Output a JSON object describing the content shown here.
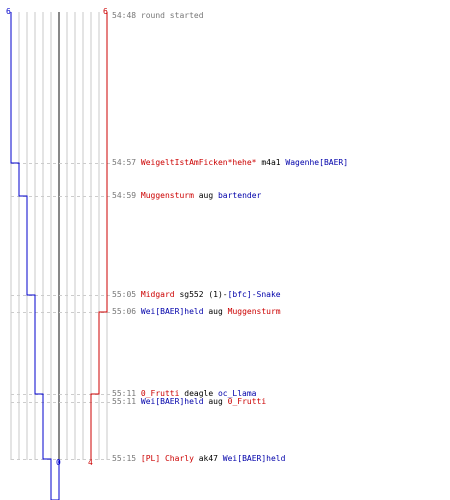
{
  "colors": {
    "red": "#cc0000",
    "blue": "#0000cc",
    "grid": "#c8c8c8",
    "center": "#888888",
    "time": "#777777",
    "dash": "#cccccc"
  },
  "counts": {
    "blue_start": "6",
    "red_start": "6",
    "blue_end": "0",
    "red_end": "4"
  },
  "events": [
    {
      "time": "54:48",
      "parts": [
        {
          "text": "round started",
          "color": "text"
        }
      ]
    },
    {
      "time": "54:57",
      "parts": [
        {
          "text": "WeigeltIstAmFicken*hehe*",
          "color": "red"
        },
        {
          "text": " m4a1 ",
          "color": "plain"
        },
        {
          "text": "Wagenhe[BAER]",
          "color": "blue"
        }
      ]
    },
    {
      "time": "54:59",
      "parts": [
        {
          "text": "Muggensturm",
          "color": "red"
        },
        {
          "text": " aug ",
          "color": "plain"
        },
        {
          "text": "bartender",
          "color": "blue"
        }
      ]
    },
    {
      "time": "55:05",
      "parts": [
        {
          "text": "Midgard",
          "color": "red"
        },
        {
          "text": " sg552 (1)-",
          "color": "plain"
        },
        {
          "text": "[bfc]-Snake",
          "color": "blue"
        }
      ]
    },
    {
      "time": "55:06",
      "parts": [
        {
          "text": "Wei[BAER]held",
          "color": "blue"
        },
        {
          "text": " aug ",
          "color": "plain"
        },
        {
          "text": "Muggensturm",
          "color": "red"
        }
      ]
    },
    {
      "time": "55:11",
      "parts": [
        {
          "text": "0_Frutti",
          "color": "red"
        },
        {
          "text": " deagle ",
          "color": "plain"
        },
        {
          "text": "oc_Llama",
          "color": "blue"
        }
      ]
    },
    {
      "time": "55:11",
      "parts": [
        {
          "text": "Wei[BAER]held",
          "color": "blue"
        },
        {
          "text": " aug ",
          "color": "plain"
        },
        {
          "text": "0_Frutti",
          "color": "red"
        }
      ]
    },
    {
      "time": "55:15",
      "parts": [
        {
          "text": "[PL] Charly",
          "color": "red"
        },
        {
          "text": " ak47 ",
          "color": "plain"
        },
        {
          "text": "Wei[BAER]held",
          "color": "blue"
        }
      ]
    }
  ]
}
